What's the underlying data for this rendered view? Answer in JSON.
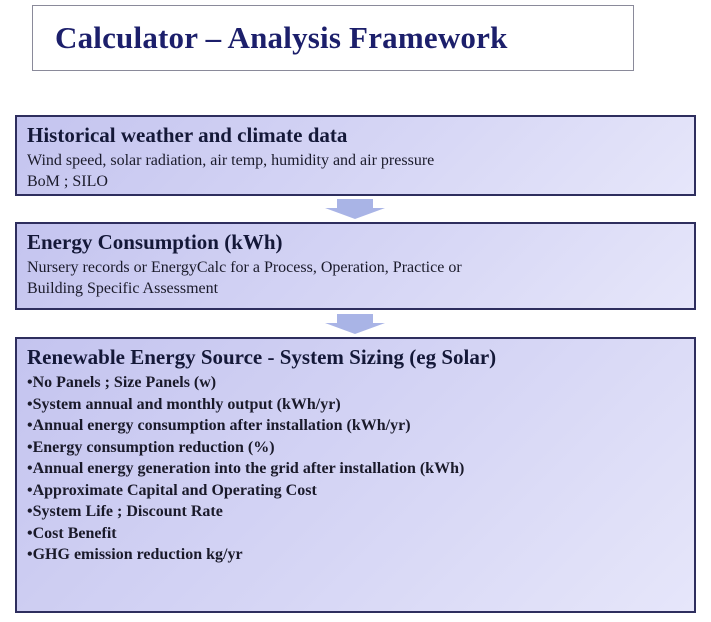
{
  "header": {
    "title": "Calculator – Analysis Framework"
  },
  "boxes": [
    {
      "heading": "Historical weather and climate data",
      "lines": [
        "Wind speed, solar radiation, air temp, humidity and air pressure",
        "BoM ; SILO"
      ]
    },
    {
      "heading": "Energy Consumption (kWh)",
      "lines": [
        "Nursery records or EnergyCalc for a Process, Operation, Practice or",
        "Building Specific Assessment"
      ]
    },
    {
      "heading": "Renewable Energy Source - System Sizing (eg Solar)",
      "lines": [
        "•No Panels ; Size Panels (w)",
        "•System annual and monthly output (kWh/yr)",
        "•Annual energy consumption after installation (kWh/yr)",
        "•Energy consumption reduction (%)",
        "•Annual energy generation into the grid after installation (kWh)",
        "•Approximate Capital and Operating Cost",
        "•System Life ; Discount Rate",
        "•Cost Benefit",
        "•GHG emission reduction kg/yr"
      ]
    }
  ]
}
